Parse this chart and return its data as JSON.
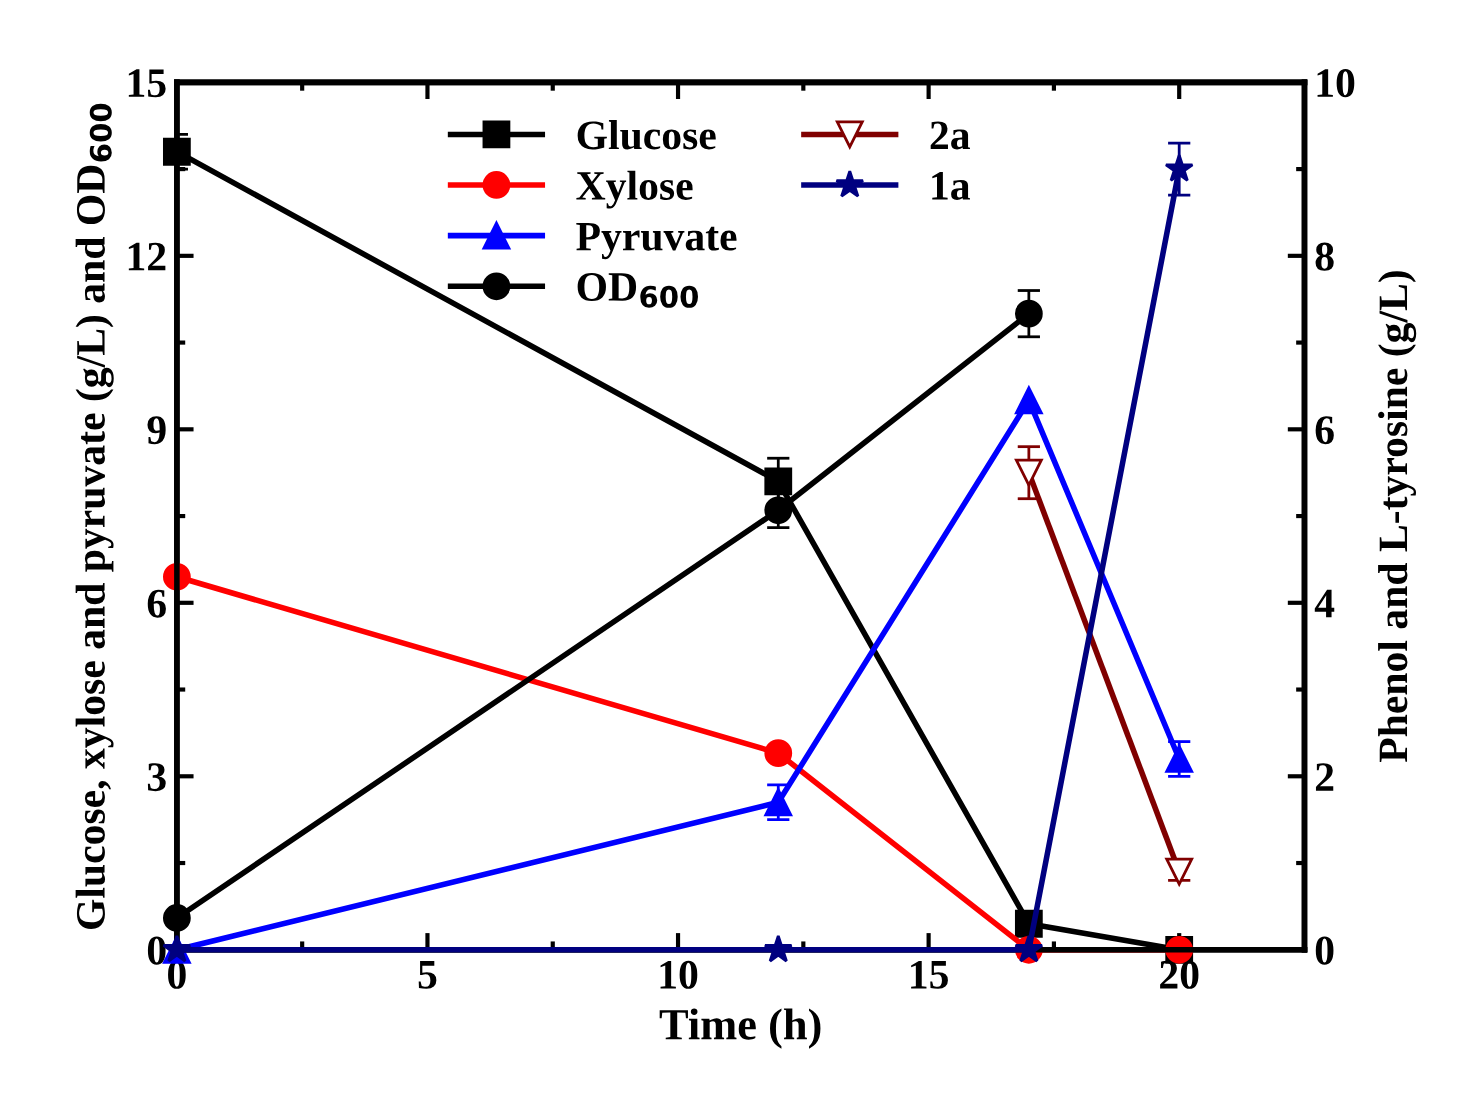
{
  "chart_data": {
    "type": "line",
    "xlabel": "Time (h)",
    "ylabel": "Glucose, xylose and pyruvate (g/L) and OD$_{600}$",
    "y2label": "Phenol and L-tyrosine (g/L)",
    "x": [
      0,
      12,
      17,
      20
    ],
    "xlim": [
      0,
      22.5
    ],
    "xticks": [
      0,
      5,
      10,
      15,
      20
    ],
    "ylim": [
      0,
      15
    ],
    "yticks": [
      0,
      3,
      6,
      9,
      12,
      15
    ],
    "y2lim": [
      0,
      10
    ],
    "y2ticks": [
      0,
      2,
      4,
      6,
      8,
      10
    ],
    "grid": false,
    "legend": "top",
    "line_style": "solid",
    "series": [
      {
        "name": "Glucose",
        "color": "#000000",
        "marker": "square",
        "values": [
          13.8,
          8.1,
          0.45,
          0
        ],
        "errors": [
          0.3,
          0.4,
          null,
          null
        ]
      },
      {
        "name": "Xylose",
        "color": "#ff0000",
        "marker": "circle",
        "values": [
          6.45,
          3.4,
          0,
          0
        ]
      },
      {
        "name": "Pyruvate",
        "color": "#0000ff",
        "marker": "triangle",
        "values": [
          0,
          2.55,
          9.5,
          3.3
        ],
        "errors": [
          null,
          0.3,
          null,
          0.3
        ]
      },
      {
        "name": "OD$_{600}$",
        "color": "#000000",
        "marker": "circle",
        "values": [
          0.55,
          7.6,
          11.0,
          null
        ],
        "errors": [
          null,
          0.3,
          0.4,
          null
        ]
      },
      {
        "name": "2a",
        "color": "#800000",
        "marker": "triangle_down_open",
        "axis": "y2",
        "values": [
          null,
          null,
          5.5,
          0.9
        ],
        "errors": [
          null,
          null,
          0.3,
          0.1
        ]
      },
      {
        "name": "1a",
        "color": "#000080",
        "marker": "star",
        "axis": "y2",
        "values": [
          0,
          0,
          0,
          9.0
        ],
        "errors": [
          null,
          null,
          null,
          0.3
        ]
      }
    ]
  }
}
